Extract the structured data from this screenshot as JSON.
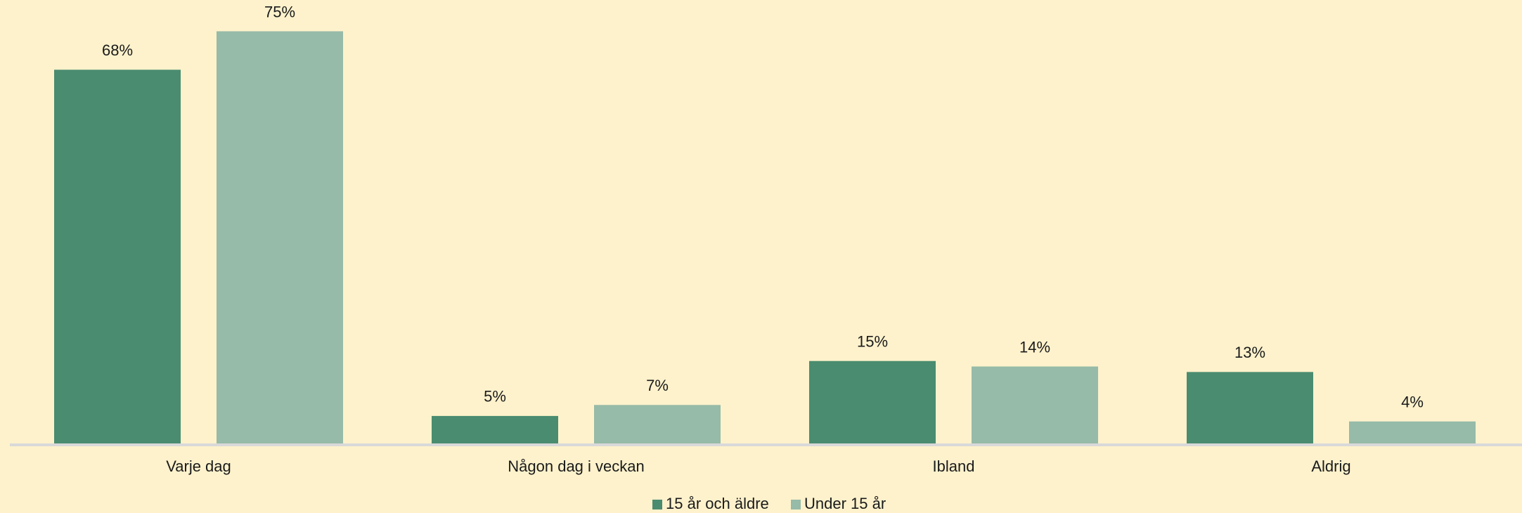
{
  "chart_data": {
    "type": "bar",
    "categories": [
      "Varje dag",
      "Någon dag i veckan",
      "Ibland",
      "Aldrig"
    ],
    "series": [
      {
        "name": "15 år och äldre",
        "color": "#4a8c6f",
        "values": [
          68,
          5,
          15,
          13
        ],
        "value_labels": [
          "68%",
          "5%",
          "15%",
          "13%"
        ]
      },
      {
        "name": "Under 15 år",
        "color": "#96bba8",
        "values": [
          75,
          7,
          14,
          4
        ],
        "value_labels": [
          "75%",
          "7%",
          "14%",
          "4%"
        ]
      }
    ],
    "legend": "bottom"
  }
}
